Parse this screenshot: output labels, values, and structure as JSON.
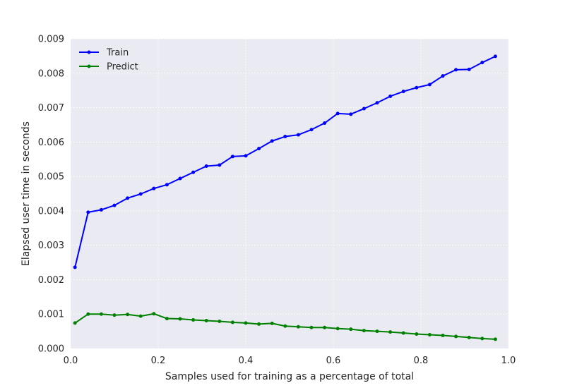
{
  "chart_data": {
    "type": "line",
    "xlabel": "Samples used for training as a percentage of total",
    "ylabel": "Elapsed user time in seconds",
    "xlim": [
      0.0,
      1.0
    ],
    "ylim": [
      0.0,
      0.009
    ],
    "x_ticks": [
      "0.0",
      "0.2",
      "0.4",
      "0.6",
      "0.8",
      "1.0"
    ],
    "y_ticks": [
      "0.000",
      "0.001",
      "0.002",
      "0.003",
      "0.004",
      "0.005",
      "0.006",
      "0.007",
      "0.008",
      "0.009"
    ],
    "grid": true,
    "legend_position": "top-left",
    "background_color": "#eaeaf2",
    "x": [
      0.01,
      0.04,
      0.07,
      0.1,
      0.13,
      0.16,
      0.19,
      0.22,
      0.25,
      0.28,
      0.31,
      0.34,
      0.37,
      0.4,
      0.43,
      0.46,
      0.49,
      0.52,
      0.55,
      0.58,
      0.61,
      0.64,
      0.67,
      0.7,
      0.73,
      0.76,
      0.79,
      0.82,
      0.85,
      0.88,
      0.91,
      0.94,
      0.97
    ],
    "series": [
      {
        "name": "Train",
        "color": "#0000ff",
        "values": [
          0.00236,
          0.00396,
          0.00403,
          0.00416,
          0.00437,
          0.00449,
          0.00465,
          0.00476,
          0.00494,
          0.00512,
          0.0053,
          0.00533,
          0.00558,
          0.0056,
          0.00581,
          0.00603,
          0.00616,
          0.00621,
          0.00636,
          0.00655,
          0.00683,
          0.00681,
          0.00697,
          0.00714,
          0.00733,
          0.00747,
          0.00758,
          0.00767,
          0.00792,
          0.0081,
          0.00811,
          0.00831,
          0.00849
        ]
      },
      {
        "name": "Predict",
        "color": "#008000",
        "values": [
          0.00074,
          0.001,
          0.001,
          0.00097,
          0.00099,
          0.00094,
          0.00101,
          0.00087,
          0.00086,
          0.00083,
          0.00081,
          0.00079,
          0.00076,
          0.00074,
          0.00071,
          0.00073,
          0.00065,
          0.00063,
          0.00061,
          0.00061,
          0.00058,
          0.00056,
          0.00052,
          0.0005,
          0.00048,
          0.00045,
          0.00042,
          0.0004,
          0.00038,
          0.00035,
          0.00032,
          0.00029,
          0.00027
        ]
      }
    ]
  }
}
